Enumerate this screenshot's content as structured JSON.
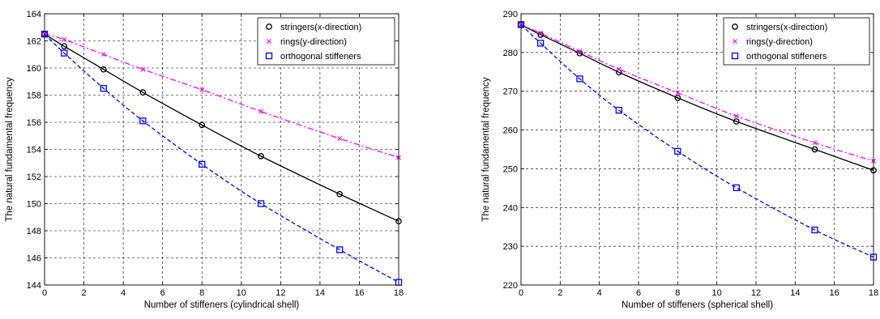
{
  "chart_data": [
    {
      "type": "line",
      "xlabel": "Number of stiffeners (cylindrical shell)",
      "ylabel": "The natural fundamental frequency",
      "xlim": [
        0,
        18
      ],
      "ylim": [
        144,
        164
      ],
      "xticks": [
        0,
        2,
        4,
        6,
        8,
        10,
        12,
        14,
        16,
        18
      ],
      "yticks": [
        144,
        146,
        148,
        150,
        152,
        154,
        156,
        158,
        160,
        162,
        164
      ],
      "grid": true,
      "legend_position": "top-right",
      "x": [
        0,
        1,
        3,
        5,
        8,
        11,
        15,
        18
      ],
      "series": [
        {
          "name": "stringers(x-direction)",
          "color": "#000000",
          "line": "solid",
          "marker": "circle",
          "values": [
            162.5,
            161.6,
            159.9,
            158.2,
            155.8,
            153.5,
            150.7,
            148.7
          ]
        },
        {
          "name": "rings(y-direction)",
          "color": "#ff00ff",
          "line": "dashdot",
          "marker": "x",
          "values": [
            162.5,
            162.1,
            161.0,
            159.9,
            158.4,
            156.8,
            154.8,
            153.4
          ]
        },
        {
          "name": "orthogonal stiffeners",
          "color": "#0000ff",
          "line": "dashed",
          "marker": "square",
          "values": [
            162.5,
            161.1,
            158.5,
            156.1,
            152.9,
            150.0,
            146.6,
            144.2
          ]
        }
      ]
    },
    {
      "type": "line",
      "xlabel": "Number of stiffeners (spherical shell)",
      "ylabel": "The natural fundamental frequency",
      "xlim": [
        0,
        18
      ],
      "ylim": [
        220,
        290
      ],
      "xticks": [
        0,
        2,
        4,
        6,
        8,
        10,
        12,
        14,
        16,
        18
      ],
      "yticks": [
        220,
        230,
        240,
        250,
        260,
        270,
        280,
        290
      ],
      "grid": true,
      "legend_position": "top-right",
      "x": [
        0,
        1,
        3,
        5,
        8,
        11,
        15,
        18
      ],
      "series": [
        {
          "name": "stringers(x-direction)",
          "color": "#000000",
          "line": "solid",
          "marker": "circle",
          "values": [
            287.2,
            284.6,
            279.8,
            274.9,
            268.3,
            262.2,
            255.0,
            249.6
          ]
        },
        {
          "name": "rings(y-direction)",
          "color": "#ff00ff",
          "line": "dashdot",
          "marker": "x",
          "values": [
            287.2,
            285.0,
            280.3,
            275.7,
            269.6,
            263.6,
            256.7,
            252.0
          ]
        },
        {
          "name": "orthogonal stiffeners",
          "color": "#0000ff",
          "line": "dashed",
          "marker": "square",
          "values": [
            287.2,
            282.4,
            273.2,
            265.1,
            254.5,
            245.1,
            234.2,
            227.2
          ]
        }
      ]
    }
  ]
}
